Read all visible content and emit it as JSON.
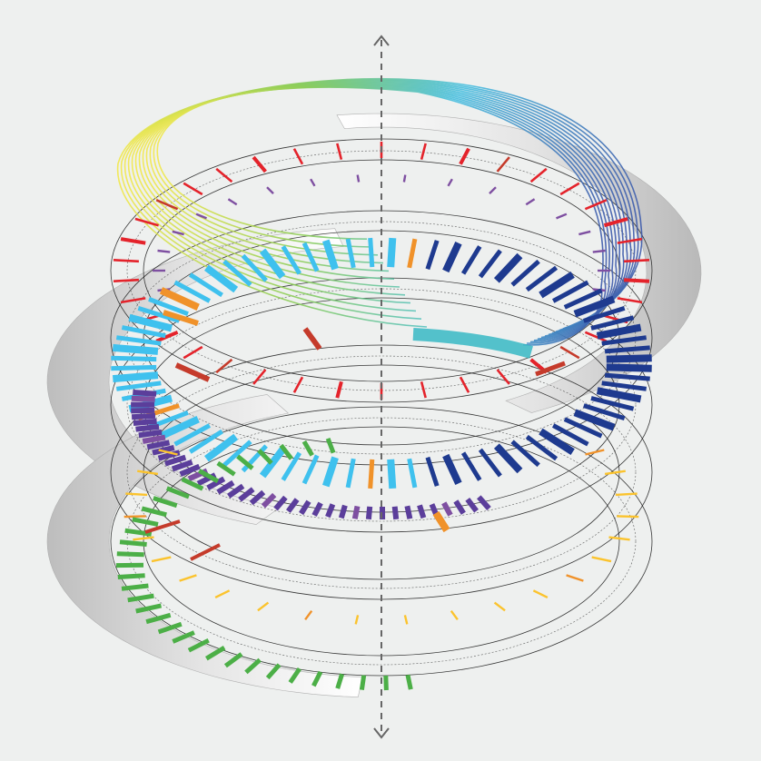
{
  "colors": {
    "background": "#eef0ef",
    "ring_line": "#222222",
    "axis": "#666666",
    "ribbon_light": "#ffffff",
    "ribbon_mid": "#e2e2e2",
    "ribbon_dark": "#b8b8b8",
    "ribbon_edge": "#b0b0b0",
    "red": "#e4232b",
    "dark_red": "#c53b2b",
    "purple": "#7e4fa1",
    "dark_purple": "#5b3e9b",
    "cyan": "#3fc1ee",
    "navy": "#1e3a8f",
    "teal": "#37b8c4",
    "orange": "#f0922a",
    "yellow": "#fbc32d",
    "green": "#4caf47"
  },
  "axis": {
    "arrowheads": "both",
    "style": "dashed"
  },
  "helix": {
    "levels": 6
  },
  "flow_bundle": {
    "strands": 12,
    "gradient": [
      "#f2e84b",
      "#8ccd5a",
      "#48bfe0",
      "#3e5bab"
    ]
  },
  "rings": [
    {
      "name": "red",
      "ticks": 38,
      "color": "red",
      "accent": "dark_red"
    },
    {
      "name": "purple",
      "ticks": 18,
      "color": "purple"
    },
    {
      "name": "cyan-navy",
      "ticks": 76,
      "color": "cyan",
      "accent": "navy"
    },
    {
      "name": "violet",
      "ticks": 40,
      "color": "dark_purple"
    },
    {
      "name": "yellow",
      "ticks": 22,
      "color": "yellow",
      "accent": "orange"
    },
    {
      "name": "green",
      "ticks": 34,
      "color": "green"
    }
  ]
}
